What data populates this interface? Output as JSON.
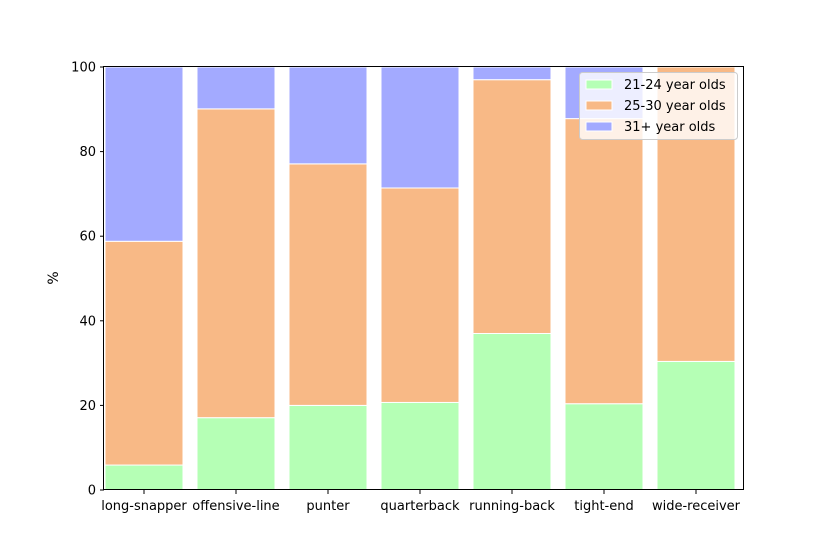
{
  "chart_data": {
    "type": "bar",
    "stacked": true,
    "categories": [
      "long-snapper",
      "offensive-line",
      "punter",
      "quarterback",
      "running-back",
      "tight-end",
      "wide-receiver"
    ],
    "series": [
      {
        "name": "21-24 year olds",
        "color": "#b5ffb5",
        "values": [
          5.9,
          17.1,
          20.0,
          20.7,
          37.0,
          20.4,
          30.4
        ]
      },
      {
        "name": "25-30 year olds",
        "color": "#f8b986",
        "values": [
          52.9,
          73.0,
          57.1,
          50.7,
          60.0,
          67.4,
          69.6
        ]
      },
      {
        "name": "31+ year olds",
        "color": "#a3aaff",
        "values": [
          41.2,
          9.9,
          22.9,
          28.6,
          3.0,
          12.2,
          0.0
        ]
      }
    ],
    "ylabel": "%",
    "xlabel": "",
    "ylim": [
      0,
      100
    ],
    "yticks": [
      0,
      20,
      40,
      60,
      80,
      100
    ],
    "grid": false,
    "legend_position": "top-right"
  }
}
